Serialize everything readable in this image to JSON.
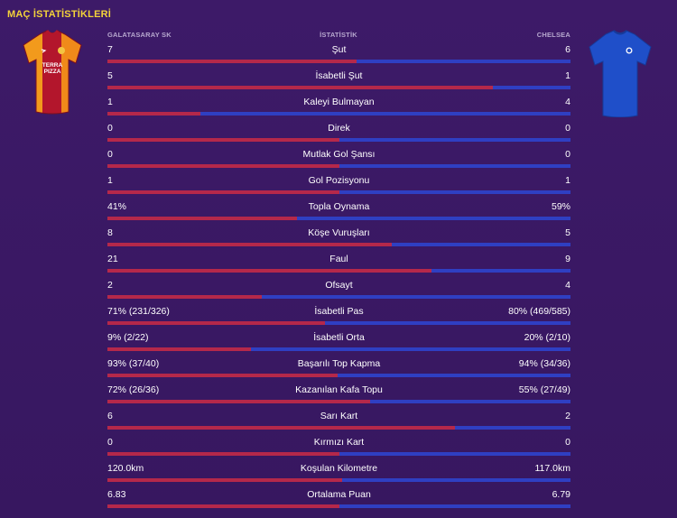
{
  "page": {
    "title": "MAÇ İSTATİSTİKLERİ"
  },
  "header": {
    "home_team": "GALATASARAY SK",
    "stat_column": "İSTATİSTİK",
    "away_team": "CHELSEA"
  },
  "colors": {
    "home_bar": "#b5284a",
    "away_bar": "#2f3fc2",
    "title": "#f3d23a",
    "background": "#3d1a68"
  },
  "kits": {
    "home_text": "TERRA PIZZA"
  },
  "stats": [
    {
      "label": "Şut",
      "home": "7",
      "away": "6",
      "home_share": 0.538
    },
    {
      "label": "İsabetli Şut",
      "home": "5",
      "away": "1",
      "home_share": 0.833
    },
    {
      "label": "Kaleyi Bulmayan",
      "home": "1",
      "away": "4",
      "home_share": 0.2
    },
    {
      "label": "Direk",
      "home": "0",
      "away": "0",
      "home_share": 0.5
    },
    {
      "label": "Mutlak Gol Şansı",
      "home": "0",
      "away": "0",
      "home_share": 0.5
    },
    {
      "label": "Gol Pozisyonu",
      "home": "1",
      "away": "1",
      "home_share": 0.5
    },
    {
      "label": "Topla Oynama",
      "home": "41%",
      "away": "59%",
      "home_share": 0.41
    },
    {
      "label": "Köşe Vuruşları",
      "home": "8",
      "away": "5",
      "home_share": 0.615
    },
    {
      "label": "Faul",
      "home": "21",
      "away": "9",
      "home_share": 0.7
    },
    {
      "label": "Ofsayt",
      "home": "2",
      "away": "4",
      "home_share": 0.333
    },
    {
      "label": "İsabetli Pas",
      "home": "71% (231/326)",
      "away": "80% (469/585)",
      "home_share": 0.47
    },
    {
      "label": "İsabetli Orta",
      "home": "9% (2/22)",
      "away": "20% (2/10)",
      "home_share": 0.31
    },
    {
      "label": "Başarılı Top Kapma",
      "home": "93% (37/40)",
      "away": "94% (34/36)",
      "home_share": 0.497
    },
    {
      "label": "Kazanılan Kafa Topu",
      "home": "72% (26/36)",
      "away": "55% (27/49)",
      "home_share": 0.567
    },
    {
      "label": "Sarı Kart",
      "home": "6",
      "away": "2",
      "home_share": 0.75
    },
    {
      "label": "Kırmızı Kart",
      "home": "0",
      "away": "0",
      "home_share": 0.5
    },
    {
      "label": "Koşulan Kilometre",
      "home": "120.0km",
      "away": "117.0km",
      "home_share": 0.506
    },
    {
      "label": "Ortalama Puan",
      "home": "6.83",
      "away": "6.79",
      "home_share": 0.501
    }
  ]
}
